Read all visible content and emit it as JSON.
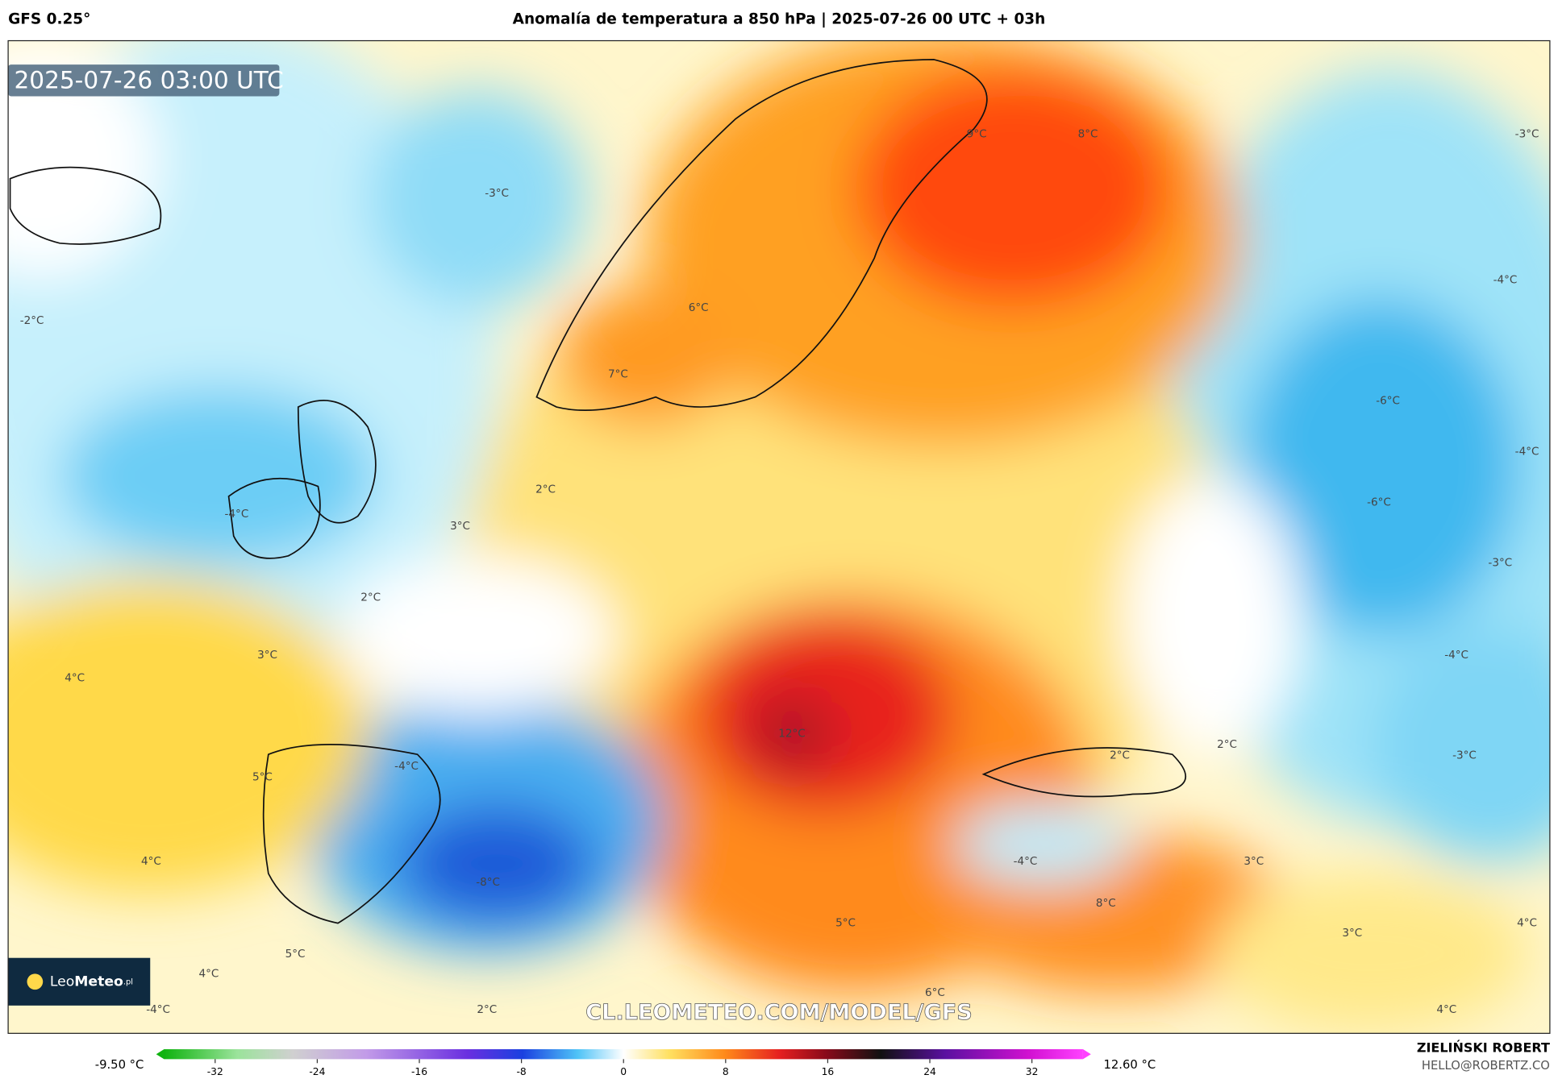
{
  "header": {
    "model": "GFS 0.25°",
    "title": "Anomalía de temperatura a 850 hPa | 2025-07-26 00 UTC + 03h"
  },
  "map": {
    "timestamp": "2025-07-26 03:00 UTC",
    "logo": "Leo",
    "logo_bold": "Meteo",
    "logo_suffix": ".pl",
    "watermark": "CL.LEOMETEO.COM/MODEL/GFS",
    "contour_labels": [
      "9°C",
      "8°C",
      "-3°C",
      "-3°C",
      "-2°C",
      "6°C",
      "-4°C",
      "7°C",
      "-6°C",
      "-4°C",
      "2°C",
      "-4°C",
      "-6°C",
      "3°C",
      "-3°C",
      "2°C",
      "3°C",
      "-4°C",
      "4°C",
      "12°C",
      "2°C",
      "2°C",
      "-3°C",
      "-4°C",
      "5°C",
      "4°C",
      "-4°C",
      "3°C",
      "-8°C",
      "8°C",
      "5°C",
      "3°C",
      "4°C",
      "5°C",
      "4°C",
      "6°C",
      "2°C",
      "-4°C",
      "4°C"
    ]
  },
  "colorbar": {
    "range": [
      -36,
      36
    ],
    "ticks": [
      -32,
      -24,
      -16,
      -8,
      0,
      8,
      16,
      24,
      32
    ],
    "min_label": "-9.50 °C",
    "max_label": "12.60 °C"
  },
  "footer": {
    "author": "ZIELIŃSKI ROBERT",
    "email": "HELLO@ROBERTZ.CO"
  }
}
